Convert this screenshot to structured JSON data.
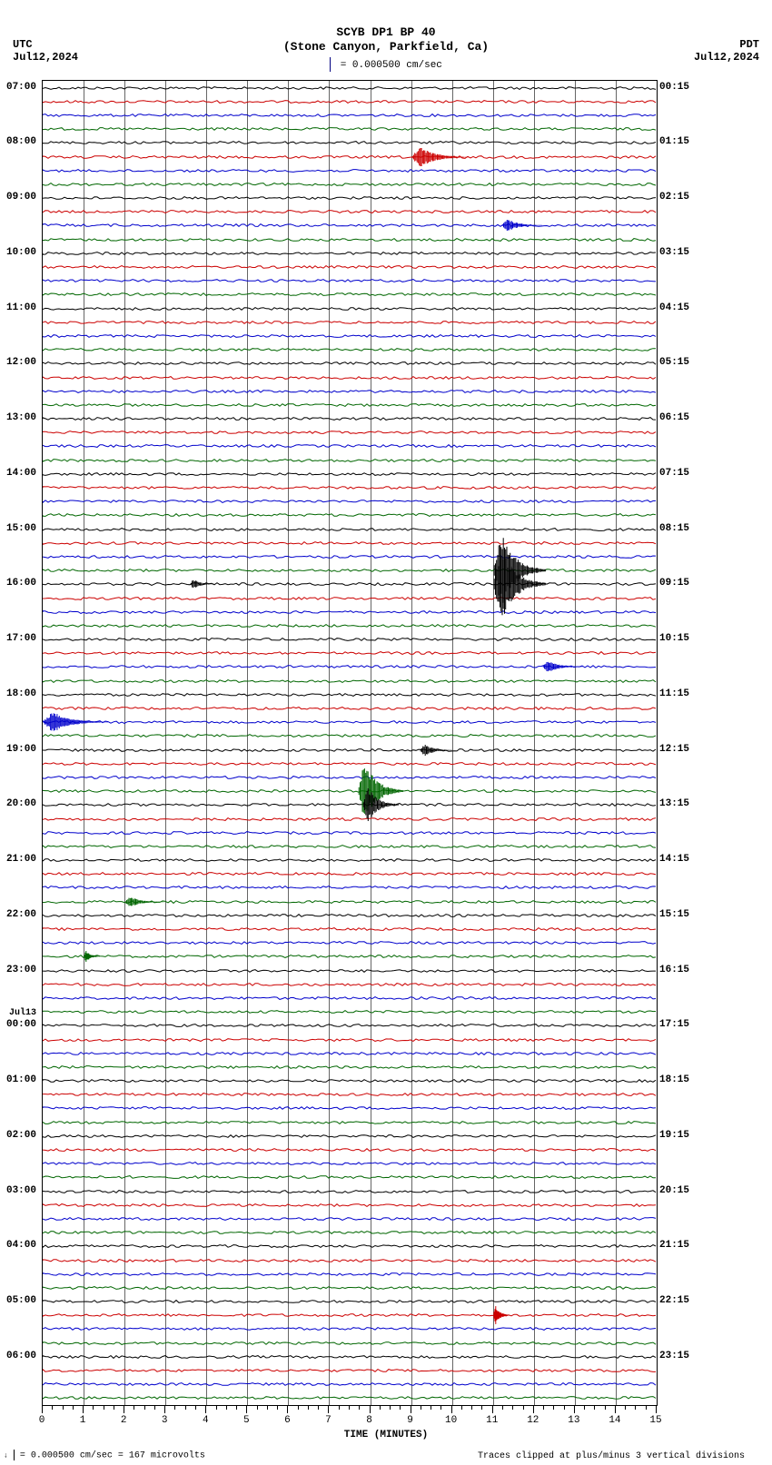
{
  "header": {
    "title1": "SCYB DP1 BP 40",
    "title2": "(Stone Canyon, Parkfield, Ca)",
    "scale_text": "= 0.000500 cm/sec"
  },
  "corners": {
    "tl_tz": "UTC",
    "tl_date": "Jul12,2024",
    "tr_tz": "PDT",
    "tr_date": "Jul12,2024"
  },
  "plot": {
    "x_min": 0,
    "x_max": 15,
    "x_label": "TIME (MINUTES)",
    "x_ticks": [
      0,
      1,
      2,
      3,
      4,
      5,
      6,
      7,
      8,
      9,
      10,
      11,
      12,
      13,
      14,
      15
    ],
    "minor_per_major": 4,
    "line_colors": [
      "#000000",
      "#cc0000",
      "#0000cc",
      "#006600"
    ],
    "num_lines": 96,
    "grid_color": "#666666",
    "grid_vlines": [
      0,
      1,
      2,
      3,
      4,
      5,
      6,
      7,
      8,
      9,
      10,
      11,
      12,
      13,
      14,
      15
    ]
  },
  "left_labels": [
    {
      "idx": 0,
      "text": "07:00"
    },
    {
      "idx": 4,
      "text": "08:00"
    },
    {
      "idx": 8,
      "text": "09:00"
    },
    {
      "idx": 12,
      "text": "10:00"
    },
    {
      "idx": 16,
      "text": "11:00"
    },
    {
      "idx": 20,
      "text": "12:00"
    },
    {
      "idx": 24,
      "text": "13:00"
    },
    {
      "idx": 28,
      "text": "14:00"
    },
    {
      "idx": 32,
      "text": "15:00"
    },
    {
      "idx": 36,
      "text": "16:00"
    },
    {
      "idx": 40,
      "text": "17:00"
    },
    {
      "idx": 44,
      "text": "18:00"
    },
    {
      "idx": 48,
      "text": "19:00"
    },
    {
      "idx": 52,
      "text": "20:00"
    },
    {
      "idx": 56,
      "text": "21:00"
    },
    {
      "idx": 60,
      "text": "22:00"
    },
    {
      "idx": 64,
      "text": "23:00"
    },
    {
      "idx": 68,
      "text": "00:00"
    },
    {
      "idx": 72,
      "text": "01:00"
    },
    {
      "idx": 76,
      "text": "02:00"
    },
    {
      "idx": 80,
      "text": "03:00"
    },
    {
      "idx": 84,
      "text": "04:00"
    },
    {
      "idx": 88,
      "text": "05:00"
    },
    {
      "idx": 92,
      "text": "06:00"
    }
  ],
  "day_break": {
    "idx": 68,
    "text": "Jul13"
  },
  "right_labels": [
    {
      "idx": 0,
      "text": "00:15"
    },
    {
      "idx": 4,
      "text": "01:15"
    },
    {
      "idx": 8,
      "text": "02:15"
    },
    {
      "idx": 12,
      "text": "03:15"
    },
    {
      "idx": 16,
      "text": "04:15"
    },
    {
      "idx": 20,
      "text": "05:15"
    },
    {
      "idx": 24,
      "text": "06:15"
    },
    {
      "idx": 28,
      "text": "07:15"
    },
    {
      "idx": 32,
      "text": "08:15"
    },
    {
      "idx": 36,
      "text": "09:15"
    },
    {
      "idx": 40,
      "text": "10:15"
    },
    {
      "idx": 44,
      "text": "11:15"
    },
    {
      "idx": 48,
      "text": "12:15"
    },
    {
      "idx": 52,
      "text": "13:15"
    },
    {
      "idx": 56,
      "text": "14:15"
    },
    {
      "idx": 60,
      "text": "15:15"
    },
    {
      "idx": 64,
      "text": "16:15"
    },
    {
      "idx": 68,
      "text": "17:15"
    },
    {
      "idx": 72,
      "text": "18:15"
    },
    {
      "idx": 76,
      "text": "19:15"
    },
    {
      "idx": 80,
      "text": "20:15"
    },
    {
      "idx": 84,
      "text": "21:15"
    },
    {
      "idx": 88,
      "text": "22:15"
    },
    {
      "idx": 92,
      "text": "23:15"
    }
  ],
  "events": [
    {
      "line": 5,
      "x_min": 9.0,
      "width_min": 1.4,
      "amp": 10,
      "color": "#cc0000"
    },
    {
      "line": 10,
      "x_min": 11.2,
      "width_min": 1.0,
      "amp": 6,
      "color": "#0000cc"
    },
    {
      "line": 35,
      "x_min": 11.0,
      "width_min": 1.3,
      "amp": 36,
      "color": "#000000"
    },
    {
      "line": 36,
      "x_min": 11.0,
      "width_min": 1.3,
      "amp": 36,
      "color": "#000000"
    },
    {
      "line": 36,
      "x_min": 3.6,
      "width_min": 0.6,
      "amp": 5,
      "color": "#000000"
    },
    {
      "line": 42,
      "x_min": 12.2,
      "width_min": 1.0,
      "amp": 6,
      "color": "#0000cc"
    },
    {
      "line": 46,
      "x_min": 0.0,
      "width_min": 1.6,
      "amp": 10,
      "color": "#0000cc"
    },
    {
      "line": 48,
      "x_min": 9.2,
      "width_min": 0.8,
      "amp": 6,
      "color": "#000000"
    },
    {
      "line": 51,
      "x_min": 7.7,
      "width_min": 1.1,
      "amp": 30,
      "color": "#006600"
    },
    {
      "line": 52,
      "x_min": 7.8,
      "width_min": 0.9,
      "amp": 18,
      "color": "#000000"
    },
    {
      "line": 59,
      "x_min": 2.0,
      "width_min": 1.0,
      "amp": 5,
      "color": "#006600"
    },
    {
      "line": 63,
      "x_min": 1.0,
      "width_min": 0.4,
      "amp": 6,
      "color": "#006600"
    },
    {
      "line": 89,
      "x_min": 11.0,
      "width_min": 0.4,
      "amp": 10,
      "color": "#cc0000"
    }
  ],
  "footer": {
    "left": "= 0.000500 cm/sec =    167 microvolts",
    "right": "Traces clipped at plus/minus 3 vertical divisions"
  }
}
